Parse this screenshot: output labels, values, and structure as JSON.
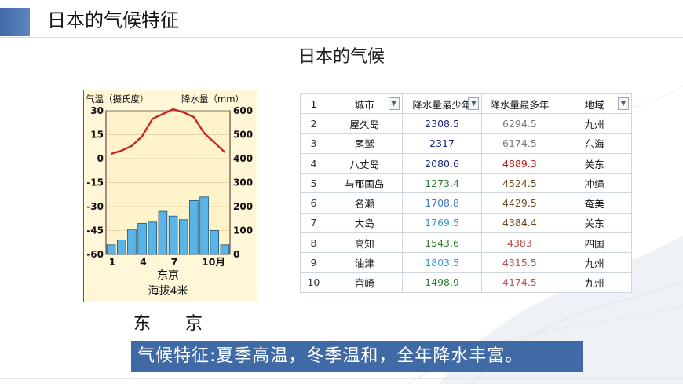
{
  "header": {
    "title": "日本的气候特征"
  },
  "slide": {
    "title": "日本的气候"
  },
  "chart_data": {
    "type": "bar",
    "left_axis_label": "气温（摄氏度）",
    "right_axis_label": "降水量（mm）",
    "left_ticks": [
      "30",
      "15",
      "0",
      "-15",
      "-30",
      "-45",
      "-60"
    ],
    "right_ticks": [
      "600",
      "500",
      "400",
      "300",
      "200",
      "100",
      "0"
    ],
    "x_ticks": [
      {
        "label": "1",
        "month": 1
      },
      {
        "label": "4",
        "month": 4
      },
      {
        "label": "7",
        "month": 7
      },
      {
        "label": "10月",
        "month": 10
      }
    ],
    "temp_range": [
      -60,
      30
    ],
    "precip_range": [
      0,
      600
    ],
    "months": [
      1,
      2,
      3,
      4,
      5,
      6,
      7,
      8,
      9,
      10,
      11,
      12
    ],
    "temperature": [
      3,
      5,
      8,
      14,
      25,
      28,
      31,
      29,
      26,
      16,
      10,
      4
    ],
    "precipitation": [
      40,
      60,
      105,
      130,
      135,
      180,
      160,
      145,
      225,
      240,
      100,
      40
    ],
    "temp_color": "#c62828",
    "bar_color": "#5ab4e5",
    "station": "东京",
    "altitude": "海拔4米"
  },
  "chart_caption": {
    "left": "东",
    "right": "京"
  },
  "table": {
    "headers": [
      "城市",
      "降水量最少年",
      "降水量最多年",
      "地域"
    ],
    "filter_glyph": "▼",
    "rows": [
      {
        "idx": "1"
      },
      {
        "idx": "2",
        "city": "屋久岛",
        "min": "2308.5",
        "max": "6294.5",
        "region": "九州",
        "min_color": "#1a237e",
        "max_color": "#7a7a7a"
      },
      {
        "idx": "3",
        "city": "尾鹫",
        "min": "2317",
        "max": "6174.5",
        "region": "东海",
        "min_color": "#1a237e",
        "max_color": "#7a7a7a"
      },
      {
        "idx": "4",
        "city": "八丈岛",
        "min": "2080.6",
        "max": "4889.3",
        "region": "关东",
        "min_color": "#1a237e",
        "max_color": "#b71c1c"
      },
      {
        "idx": "5",
        "city": "与那国岛",
        "min": "1273.4",
        "max": "4524.5",
        "region": "冲绳",
        "min_color": "#2e7d32",
        "max_color": "#6d4c1f"
      },
      {
        "idx": "6",
        "city": "名濑",
        "min": "1708.8",
        "max": "4429.5",
        "region": "奄美",
        "min_color": "#3a7bd5",
        "max_color": "#6d4c1f"
      },
      {
        "idx": "7",
        "city": "大岛",
        "min": "1769.5",
        "max": "4384.4",
        "region": "关东",
        "min_color": "#3a9bd5",
        "max_color": "#6d4c1f"
      },
      {
        "idx": "8",
        "city": "高知",
        "min": "1543.6",
        "max": "4383",
        "region": "四国",
        "min_color": "#2e7d32",
        "max_color": "#c0504d"
      },
      {
        "idx": "9",
        "city": "油津",
        "min": "1803.5",
        "max": "4315.5",
        "region": "九州",
        "min_color": "#3a9bd5",
        "max_color": "#c0504d"
      },
      {
        "idx": "10",
        "city": "宫崎",
        "min": "1498.9",
        "max": "4174.5",
        "region": "九州",
        "min_color": "#2e7d32",
        "max_color": "#c0504d"
      }
    ]
  },
  "banner": {
    "text": "气候特征:夏季高温，冬季温和，全年降水丰富。"
  },
  "colors": {
    "accent": "#3f6aa6"
  }
}
